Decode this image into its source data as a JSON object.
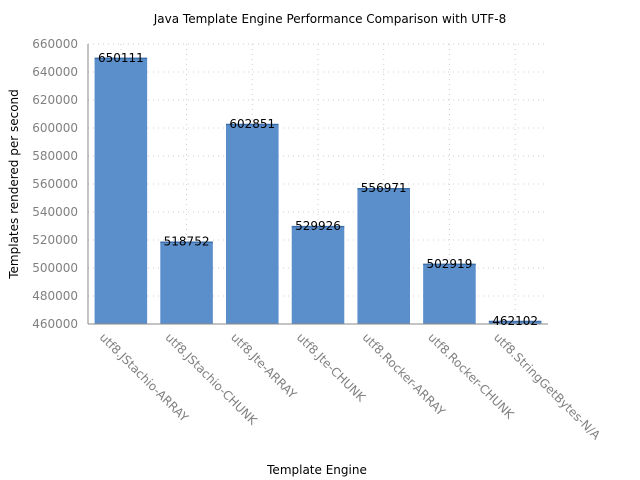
{
  "chart_data": {
    "type": "bar",
    "title": "Java Template Engine Performance Comparison with UTF-8",
    "xlabel": "Template Engine",
    "ylabel": "Templates rendered per second",
    "categories": [
      "utf8.JStachio-ARRAY",
      "utf8.JStachio-CHUNK",
      "utf8.Jte-ARRAY",
      "utf8.Jte-CHUNK",
      "utf8.Rocker-ARRAY",
      "utf8.Rocker-CHUNK",
      "utf8.StringGetBytes-N/A"
    ],
    "values": [
      650111,
      518752,
      602851,
      529926,
      556971,
      502919,
      462102
    ],
    "value_labels": [
      "650111",
      "518752",
      "602851",
      "529926",
      "556971",
      "502919",
      "462102"
    ],
    "ylim": [
      460000,
      660000
    ],
    "yticks": [
      460000,
      480000,
      500000,
      520000,
      540000,
      560000,
      580000,
      600000,
      620000,
      640000,
      660000
    ],
    "ytick_labels": [
      "460000",
      "480000",
      "500000",
      "520000",
      "540000",
      "560000",
      "580000",
      "600000",
      "620000",
      "640000",
      "660000"
    ],
    "grid": true,
    "legend": "none",
    "colors": {
      "bar": "#5b8fcc",
      "bar_top": "#3f6fa8",
      "grid": "#cfcfcf",
      "tick_text": "#808080",
      "text": "#000000"
    }
  }
}
